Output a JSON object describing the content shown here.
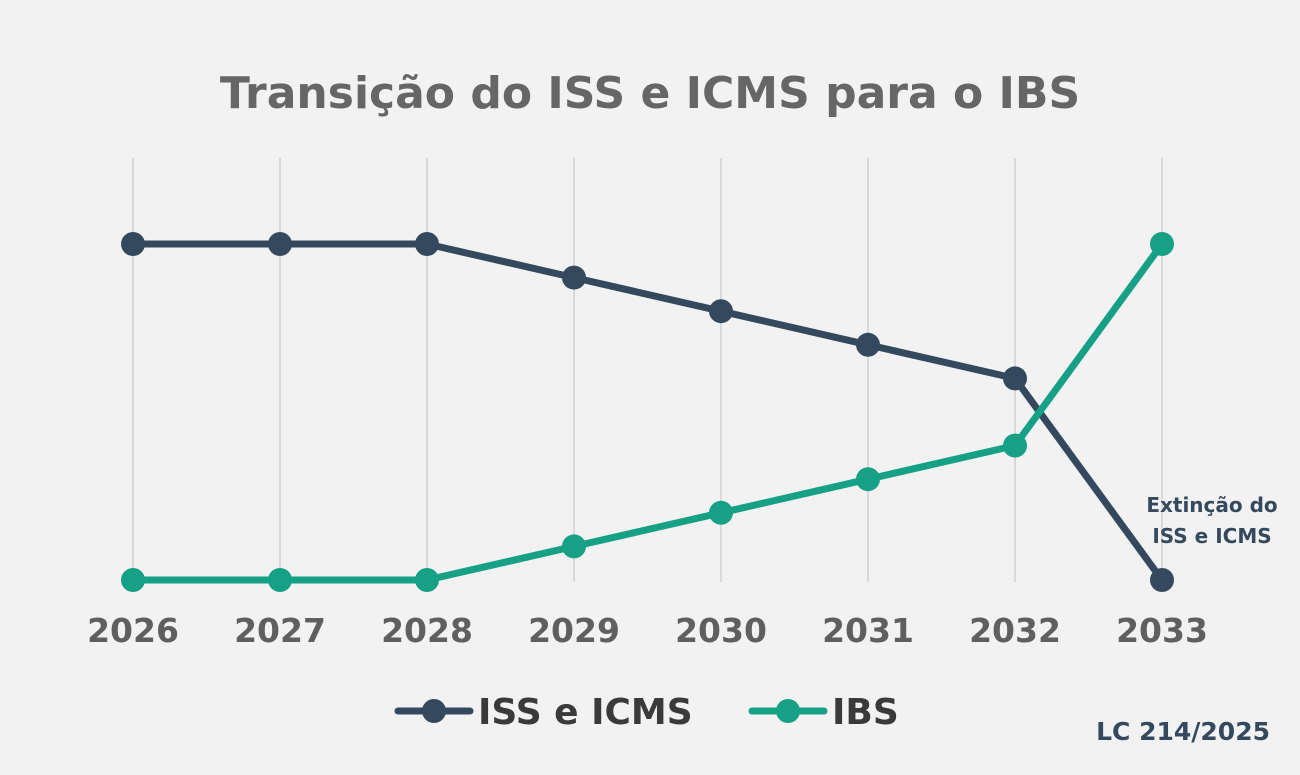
{
  "chart_data": {
    "type": "line",
    "title": "Transição do ISS e ICMS para o IBS",
    "x": [
      "2026",
      "2027",
      "2028",
      "2029",
      "2030",
      "2031",
      "2032",
      "2033"
    ],
    "series": [
      {
        "name": "ISS e ICMS",
        "color": "#34495e",
        "values": [
          100,
          100,
          100,
          90,
          80,
          70,
          60,
          0
        ]
      },
      {
        "name": "IBS",
        "color": "#16a085",
        "values": [
          0,
          0,
          0,
          10,
          20,
          30,
          40,
          100
        ]
      }
    ],
    "ylim": [
      0,
      100
    ],
    "grid": "vertical",
    "annotation": {
      "lines": [
        "Extinção do",
        "ISS e ICMS"
      ],
      "at": "2033"
    },
    "legend": "bottom-center",
    "source_note": "LC 214/2025"
  }
}
